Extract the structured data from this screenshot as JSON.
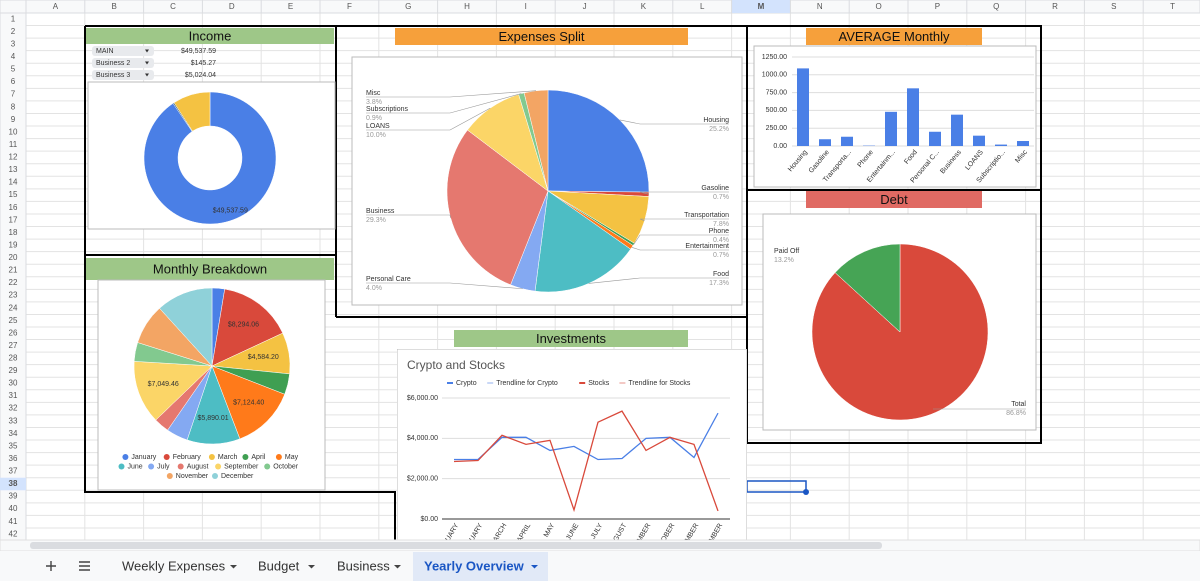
{
  "sheet": {
    "columns": [
      "A",
      "B",
      "C",
      "D",
      "E",
      "F",
      "G",
      "H",
      "I",
      "J",
      "K",
      "L",
      "M",
      "N",
      "O",
      "P",
      "Q",
      "R",
      "S",
      "T"
    ],
    "rows": [
      1,
      2,
      3,
      4,
      5,
      6,
      7,
      8,
      9,
      10,
      11,
      12,
      13,
      14,
      15,
      16,
      17,
      18,
      19,
      20,
      21,
      22,
      23,
      24,
      25,
      26,
      27,
      28,
      29,
      30,
      31,
      32,
      33,
      34,
      35,
      36,
      37,
      38,
      39,
      40,
      41,
      42
    ],
    "selected_column": 12,
    "selected_row": 37
  },
  "tabs": [
    "Weekly Expenses",
    "Budget",
    "Business",
    "Yearly Overview"
  ],
  "active_tab": 3,
  "income_table": [
    {
      "name": "MAIN",
      "amount": "$49,537.59"
    },
    {
      "name": "Business 2",
      "amount": "$145.27"
    },
    {
      "name": "Business 3",
      "amount": "$5,024.04"
    }
  ],
  "chart_data": [
    {
      "type": "donut",
      "header": "Income",
      "categories": [
        "MAIN",
        "Business 2",
        "Business 3"
      ],
      "values": [
        49537.59,
        145.27,
        5024.04
      ],
      "value_labels": [
        "$49,537.59",
        null,
        null
      ],
      "colors": [
        "#4a7fe6",
        "#1d4a5a",
        "#f4c242"
      ]
    },
    {
      "type": "pie",
      "header": "Expenses Split",
      "categories": [
        "Housing",
        "Gasoline",
        "Transportation",
        "Phone",
        "Entertainment",
        "Food",
        "Personal Care",
        "Business",
        "LOANS",
        "Subscriptions",
        "Misc"
      ],
      "values": [
        25.2,
        0.7,
        7.8,
        0.4,
        0.7,
        17.3,
        4.0,
        29.3,
        10.0,
        0.9,
        3.8
      ],
      "value_labels": [
        "25.2%",
        "0.7%",
        "7.8%",
        "0.4%",
        "0.7%",
        "17.3%",
        "4.0%",
        "29.3%",
        "10.0%",
        "0.9%",
        "3.8%"
      ],
      "colors": [
        "#4a7fe6",
        "#d9493b",
        "#f4c242",
        "#3f9f52",
        "#ff7a1a",
        "#4dbdc4",
        "#84a9f2",
        "#e5786f",
        "#fbd567",
        "#82c98f",
        "#f3a564"
      ]
    },
    {
      "type": "bar",
      "header": "AVERAGE Monthly",
      "categories": [
        "Housing",
        "Gasoline",
        "Transporta...",
        "Phone",
        "Entertainm...",
        "Food",
        "Personal C...",
        "Business",
        "LOANS",
        "Subscriptio...",
        "Misc"
      ],
      "values": [
        1090,
        95,
        130,
        5,
        480,
        810,
        200,
        440,
        145,
        20,
        70
      ],
      "color": "#4a7fe6",
      "ylim": [
        0,
        1250
      ],
      "yticks": [
        {
          "value": 0,
          "label": "0.00"
        },
        {
          "value": 250,
          "label": "250.00"
        },
        {
          "value": 500,
          "label": "500.00"
        },
        {
          "value": 750,
          "label": "750.00"
        },
        {
          "value": 1000,
          "label": "1000.00"
        },
        {
          "value": 1250,
          "label": "1250.00"
        }
      ],
      "grid": true
    },
    {
      "type": "pie",
      "header": "Debt",
      "categories": [
        "Total",
        "Paid Off"
      ],
      "values": [
        86.8,
        13.2
      ],
      "value_labels": [
        "86.8%",
        "13.2%"
      ],
      "colors": [
        "#d9493b",
        "#46a455"
      ]
    },
    {
      "type": "pie",
      "header": "Monthly Breakdown",
      "categories": [
        "January",
        "February",
        "March",
        "April",
        "May",
        "June",
        "July",
        "August",
        "September",
        "October",
        "November",
        "December"
      ],
      "values": [
        1400,
        8294.06,
        4584.2,
        2300,
        7124.4,
        5890.01,
        2400,
        1700,
        7049.46,
        2100,
        4500,
        6300
      ],
      "value_labels": [
        null,
        "$8,294.06",
        "$4,584.20",
        null,
        "$7,124.40",
        "$5,890.01",
        null,
        null,
        "$7,049.46",
        null,
        null,
        null
      ],
      "colors": [
        "#4a7fe6",
        "#d9493b",
        "#f4c242",
        "#3f9f52",
        "#ff7a1a",
        "#4dbdc4",
        "#84a9f2",
        "#e5786f",
        "#fbd567",
        "#82c98f",
        "#f3a564",
        "#8fd1d9"
      ]
    },
    {
      "type": "line",
      "header": "Investments",
      "title": "Crypto and Stocks",
      "categories": [
        "JANUARY",
        "FEBRUARY",
        "MARCH",
        "APRIL",
        "MAY",
        "JUNE",
        "JULY",
        "AUGUST",
        "SEPTEMBER",
        "OCTOBER",
        "NOVEMBER",
        "DECEMBER"
      ],
      "series": [
        {
          "name": "Crypto",
          "color": "#4a7fe6",
          "values": [
            2950,
            2950,
            4050,
            4050,
            3400,
            3600,
            2950,
            3000,
            4000,
            4050,
            3050,
            5250
          ]
        },
        {
          "name": "Stocks",
          "color": "#d9493b",
          "values": [
            2850,
            2900,
            4150,
            3700,
            3900,
            450,
            4800,
            5350,
            3400,
            4050,
            3700,
            400
          ]
        }
      ],
      "trendlines": [
        {
          "name": "Trendline for Crypto",
          "color": "#c9d8f7"
        },
        {
          "name": "Trendline for Stocks",
          "color": "#f3c9c5"
        }
      ],
      "ylim": [
        0,
        6000
      ],
      "yticks": [
        {
          "value": 0,
          "label": "$0.00"
        },
        {
          "value": 2000,
          "label": "$2,000.00"
        },
        {
          "value": 4000,
          "label": "$4,000.00"
        },
        {
          "value": 6000,
          "label": "$6,000.00"
        }
      ],
      "grid": true
    }
  ]
}
